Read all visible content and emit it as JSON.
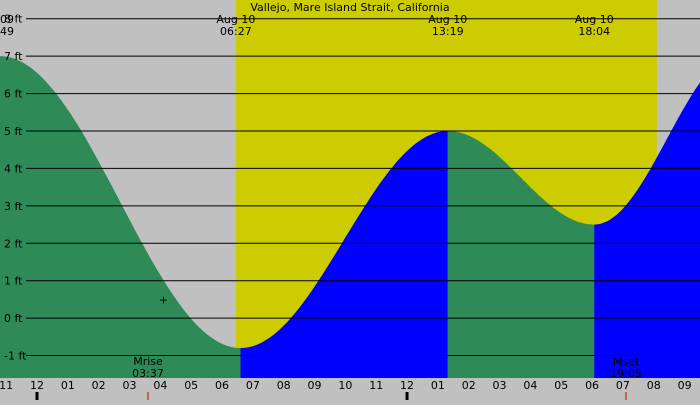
{
  "chart_data": {
    "type": "area",
    "title": "Vallejo, Mare Island Strait, California",
    "colors": {
      "night_background": "#c0c0c0",
      "daylight_background": "#cccc00",
      "falling_tide_fill": "#2e8b57",
      "rising_tide_fill": "#0000ff",
      "gridline": "#000000",
      "text": "#000000",
      "tick_mark": "#cc0000"
    },
    "ylim": [
      -1.6,
      8.5
    ],
    "y_ticks": [
      {
        "value": 8,
        "label": "8 ft"
      },
      {
        "value": 7,
        "label": "7 ft"
      },
      {
        "value": 6,
        "label": "6 ft"
      },
      {
        "value": 5,
        "label": "5 ft"
      },
      {
        "value": 4,
        "label": "4 ft"
      },
      {
        "value": 3,
        "label": "3 ft"
      },
      {
        "value": 2,
        "label": "2 ft"
      },
      {
        "value": 1,
        "label": "1 ft"
      },
      {
        "value": 0,
        "label": "0 ft"
      },
      {
        "value": -1,
        "label": "-1 ft"
      }
    ],
    "xlim_hours": [
      -1.2,
      21.5
    ],
    "x_ticks": [
      {
        "hour": -1,
        "label": "11"
      },
      {
        "hour": 0,
        "label": "12"
      },
      {
        "hour": 1,
        "label": "01"
      },
      {
        "hour": 2,
        "label": "02"
      },
      {
        "hour": 3,
        "label": "03"
      },
      {
        "hour": 4,
        "label": "04"
      },
      {
        "hour": 5,
        "label": "05"
      },
      {
        "hour": 6,
        "label": "06"
      },
      {
        "hour": 7,
        "label": "07"
      },
      {
        "hour": 8,
        "label": "08"
      },
      {
        "hour": 9,
        "label": "09"
      },
      {
        "hour": 10,
        "label": "10"
      },
      {
        "hour": 11,
        "label": "11"
      },
      {
        "hour": 12,
        "label": "12"
      },
      {
        "hour": 13,
        "label": "01"
      },
      {
        "hour": 14,
        "label": "02"
      },
      {
        "hour": 15,
        "label": "03"
      },
      {
        "hour": 16,
        "label": "04"
      },
      {
        "hour": 17,
        "label": "05"
      },
      {
        "hour": 18,
        "label": "06"
      },
      {
        "hour": 19,
        "label": "07"
      },
      {
        "hour": 20,
        "label": "08"
      },
      {
        "hour": 21,
        "label": "09"
      }
    ],
    "special_ticks": [
      {
        "hour": 0,
        "kind": "midnight"
      },
      {
        "hour": 3.6,
        "kind": "moonrise"
      },
      {
        "hour": 12,
        "kind": "noon"
      },
      {
        "hour": 19.1,
        "kind": "moonset"
      }
    ],
    "daylight": {
      "start_hour": 6.45,
      "end_hour": 20.1
    },
    "top_annotations": [
      {
        "hour": -1.2,
        "line1": "09",
        "line2": "49",
        "align": "start"
      },
      {
        "hour": 6.45,
        "line1": "Aug 10",
        "line2": "06:27",
        "align": "middle"
      },
      {
        "hour": 13.32,
        "line1": "Aug 10",
        "line2": "13:19",
        "align": "middle"
      },
      {
        "hour": 18.07,
        "line1": "Aug 10",
        "line2": "18:04",
        "align": "middle"
      }
    ],
    "bottom_annotations": [
      {
        "hour": 3.6,
        "line1": "Mrise",
        "line2": "03:37"
      },
      {
        "hour": 19.1,
        "line1": "Mset",
        "line2": "19:05"
      }
    ],
    "marker": {
      "hour": 4.1,
      "value": 0.5,
      "symbol": "+"
    },
    "tide_extremes": [
      {
        "hour": -1.2,
        "value": 7.0,
        "type": "high"
      },
      {
        "hour": 6.6,
        "value": -0.8,
        "type": "low"
      },
      {
        "hour": 13.32,
        "value": 5.0,
        "type": "high"
      },
      {
        "hour": 18.07,
        "value": 2.5,
        "type": "low"
      },
      {
        "hour": 22.8,
        "value": 7.1,
        "type": "high"
      }
    ]
  }
}
